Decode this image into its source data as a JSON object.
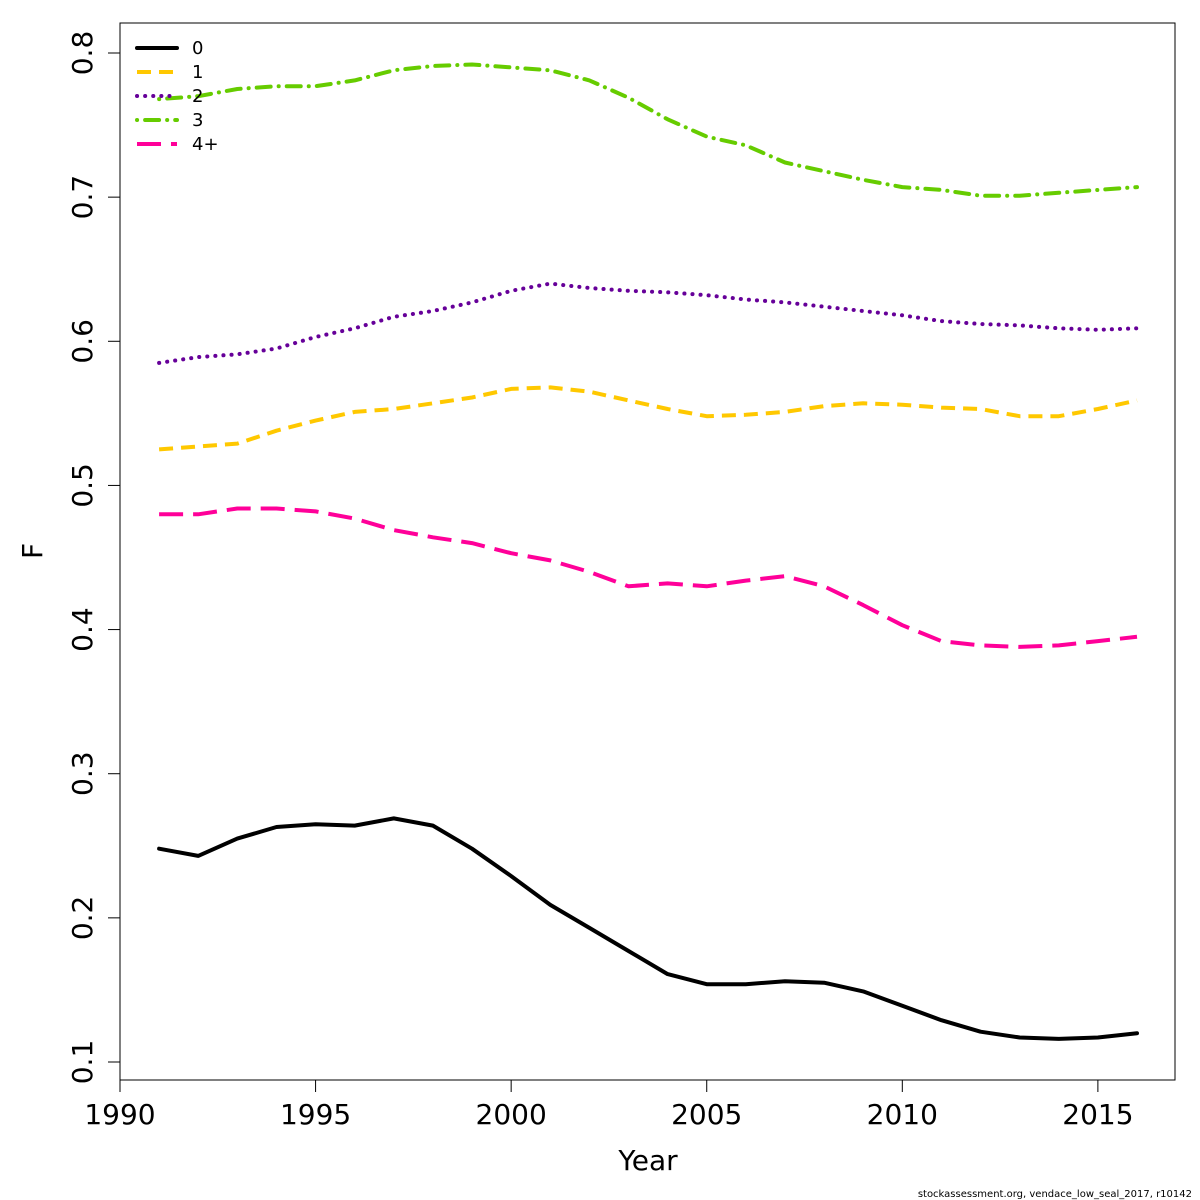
{
  "chart_data": {
    "type": "line",
    "title": "",
    "xlabel": "Year",
    "ylabel": "F",
    "xlim": [
      1990,
      2017
    ],
    "ylim": [
      0.09,
      0.82
    ],
    "xticks": [
      1990,
      1995,
      2000,
      2005,
      2010,
      2015
    ],
    "yticks": [
      0.1,
      0.2,
      0.3,
      0.4,
      0.5,
      0.6,
      0.7,
      0.8
    ],
    "ytick_labels": [
      "0.1",
      "0.2",
      "0.3",
      "0.4",
      "0.5",
      "0.6",
      "0.7",
      "0.8"
    ],
    "grid": false,
    "legend_position": "top-left",
    "x": [
      1991,
      1992,
      1993,
      1994,
      1995,
      1996,
      1997,
      1998,
      1999,
      2000,
      2001,
      2002,
      2003,
      2004,
      2005,
      2006,
      2007,
      2008,
      2009,
      2010,
      2011,
      2012,
      2013,
      2014,
      2015,
      2016
    ],
    "series": [
      {
        "name": "0",
        "color": "#000000",
        "dash": "solid",
        "values": [
          0.248,
          0.243,
          0.255,
          0.263,
          0.265,
          0.264,
          0.269,
          0.264,
          0.248,
          0.229,
          0.209,
          0.193,
          0.177,
          0.161,
          0.154,
          0.154,
          0.156,
          0.155,
          0.149,
          0.139,
          0.129,
          0.121,
          0.117,
          0.116,
          0.117,
          0.12
        ]
      },
      {
        "name": "1",
        "color": "#FFC800",
        "dash": "dashed",
        "values": [
          0.525,
          0.527,
          0.529,
          0.538,
          0.545,
          0.551,
          0.553,
          0.557,
          0.561,
          0.567,
          0.568,
          0.565,
          0.559,
          0.553,
          0.548,
          0.549,
          0.551,
          0.555,
          0.557,
          0.556,
          0.554,
          0.553,
          0.548,
          0.548,
          0.553,
          0.559
        ]
      },
      {
        "name": "2",
        "color": "#660099",
        "dash": "dotted",
        "values": [
          0.585,
          0.589,
          0.591,
          0.595,
          0.603,
          0.609,
          0.617,
          0.621,
          0.627,
          0.635,
          0.64,
          0.637,
          0.635,
          0.634,
          0.632,
          0.629,
          0.627,
          0.624,
          0.621,
          0.618,
          0.614,
          0.612,
          0.611,
          0.609,
          0.608,
          0.609
        ]
      },
      {
        "name": "3",
        "color": "#66CC00",
        "dash": "dotdash",
        "values": [
          0.768,
          0.77,
          0.775,
          0.777,
          0.777,
          0.781,
          0.788,
          0.791,
          0.792,
          0.79,
          0.788,
          0.781,
          0.769,
          0.754,
          0.742,
          0.736,
          0.724,
          0.718,
          0.712,
          0.707,
          0.705,
          0.701,
          0.701,
          0.703,
          0.705,
          0.707
        ]
      },
      {
        "name": "4+",
        "color": "#FF0099",
        "dash": "longdash",
        "values": [
          0.48,
          0.48,
          0.484,
          0.484,
          0.482,
          0.477,
          0.469,
          0.464,
          0.46,
          0.453,
          0.448,
          0.44,
          0.43,
          0.432,
          0.43,
          0.434,
          0.437,
          0.43,
          0.417,
          0.403,
          0.392,
          0.389,
          0.388,
          0.389,
          0.392,
          0.395
        ]
      }
    ]
  },
  "caption": "stockassessment.org, vendace_low_seal_2017, r10142"
}
